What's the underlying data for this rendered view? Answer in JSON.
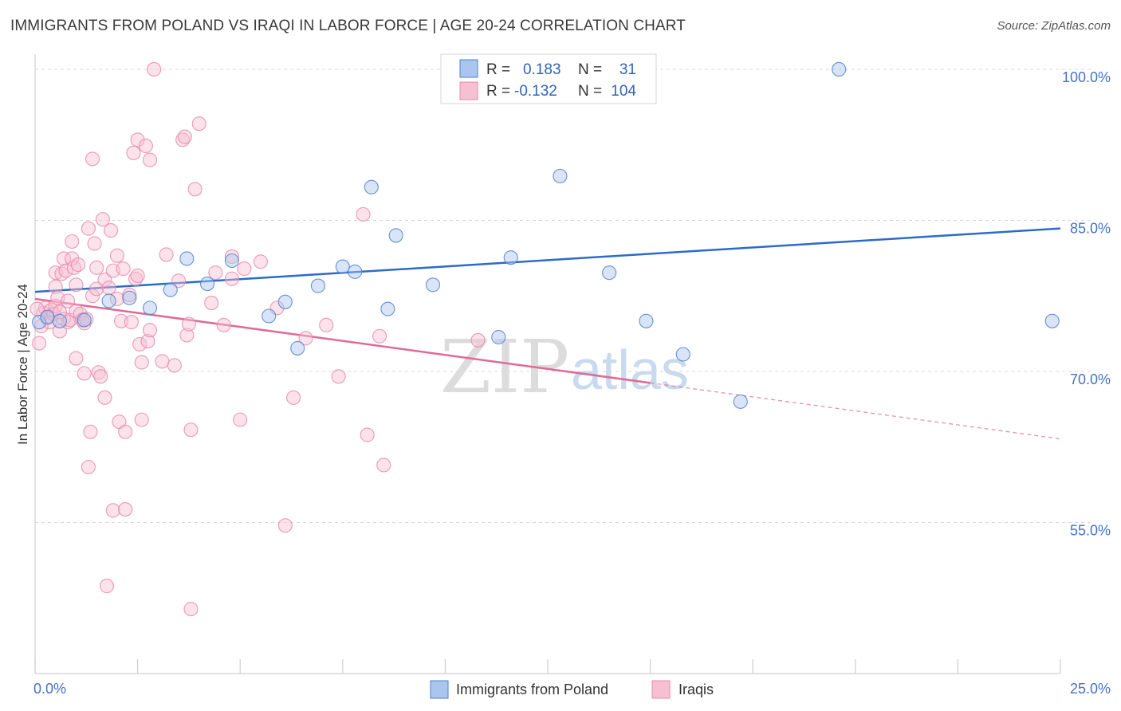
{
  "title": "IMMIGRANTS FROM POLAND VS IRAQI IN LABOR FORCE | AGE 20-24 CORRELATION CHART",
  "source": "Source: ZipAtlas.com",
  "watermark": {
    "zip": "ZIP",
    "atlas": "atlas"
  },
  "colors": {
    "blue": "#4a80d0",
    "blue_fill": "#aac6ee",
    "blue_line": "#2a6cc8",
    "pink": "#e88aaa",
    "pink_fill": "#f6bfd2",
    "pink_line": "#e06a96",
    "tick_text": "#4472c4",
    "grid": "#d8d8d8"
  },
  "stats_legend": {
    "r_label": "R =",
    "n_label": "N =",
    "rows": [
      {
        "series": "Immigrants from Poland",
        "r": "0.183",
        "n": "31"
      },
      {
        "series": "Iraqis",
        "r": "-0.132",
        "n": "104"
      }
    ]
  },
  "chart_data": {
    "type": "scatter",
    "title": "IMMIGRANTS FROM POLAND VS IRAQI IN LABOR FORCE | AGE 20-24 CORRELATION CHART",
    "xlabel": "",
    "ylabel": "In Labor Force | Age 20-24",
    "xlim": [
      0,
      25
    ],
    "ylim": [
      40,
      101.5
    ],
    "x_tick_labels": [
      {
        "value": 0,
        "label": "0.0%"
      },
      {
        "value": 25,
        "label": "25.0%"
      }
    ],
    "y_tick_labels": [
      {
        "value": 55,
        "label": "55.0%"
      },
      {
        "value": 70,
        "label": "70.0%"
      },
      {
        "value": 85,
        "label": "85.0%"
      },
      {
        "value": 100,
        "label": "100.0%"
      }
    ],
    "grid": "horizontal dashed",
    "legend_position": "bottom-center",
    "series": [
      {
        "name": "Immigrants from Poland",
        "color": "#4a80d0",
        "trend": {
          "x": [
            0,
            25
          ],
          "y": [
            77.9,
            84.2
          ],
          "solid_until": 25
        },
        "points": [
          [
            0.1,
            74.9
          ],
          [
            0.3,
            75.4
          ],
          [
            0.6,
            75.0
          ],
          [
            1.2,
            75.1
          ],
          [
            1.8,
            77.0
          ],
          [
            2.3,
            77.3
          ],
          [
            2.8,
            76.3
          ],
          [
            3.3,
            78.1
          ],
          [
            3.7,
            81.2
          ],
          [
            4.2,
            78.7
          ],
          [
            4.8,
            81.0
          ],
          [
            5.7,
            75.5
          ],
          [
            6.1,
            76.9
          ],
          [
            6.4,
            72.3
          ],
          [
            6.9,
            78.5
          ],
          [
            7.5,
            80.4
          ],
          [
            7.8,
            79.9
          ],
          [
            8.2,
            88.3
          ],
          [
            8.6,
            76.2
          ],
          [
            8.8,
            83.5
          ],
          [
            9.7,
            78.6
          ],
          [
            10.1,
            100.0
          ],
          [
            11.3,
            73.4
          ],
          [
            11.6,
            81.3
          ],
          [
            12.8,
            89.4
          ],
          [
            14.0,
            79.8
          ],
          [
            14.9,
            75.0
          ],
          [
            15.8,
            71.7
          ],
          [
            17.2,
            67.0
          ],
          [
            19.6,
            100.0
          ],
          [
            24.8,
            75.0
          ]
        ]
      },
      {
        "name": "Iraqis",
        "color": "#e88aaa",
        "trend": {
          "x": [
            0,
            25
          ],
          "y": [
            77.2,
            63.3
          ],
          "solid_until": 15
        },
        "points": [
          [
            0.1,
            72.8
          ],
          [
            0.2,
            75.8
          ],
          [
            0.25,
            76.3
          ],
          [
            0.3,
            75.3
          ],
          [
            0.35,
            74.9
          ],
          [
            0.4,
            76.1
          ],
          [
            0.45,
            75.7
          ],
          [
            0.5,
            78.4
          ],
          [
            0.5,
            79.8
          ],
          [
            0.5,
            76.5
          ],
          [
            0.55,
            77.3
          ],
          [
            0.6,
            74.0
          ],
          [
            0.6,
            75.9
          ],
          [
            0.65,
            79.7
          ],
          [
            0.7,
            81.2
          ],
          [
            0.7,
            75.2
          ],
          [
            0.75,
            80.0
          ],
          [
            0.8,
            74.9
          ],
          [
            0.8,
            77.0
          ],
          [
            0.85,
            75.1
          ],
          [
            0.9,
            82.9
          ],
          [
            0.9,
            81.2
          ],
          [
            0.95,
            80.3
          ],
          [
            1.0,
            71.3
          ],
          [
            1.0,
            78.6
          ],
          [
            1.0,
            76.0
          ],
          [
            1.05,
            80.6
          ],
          [
            1.1,
            75.7
          ],
          [
            1.15,
            75.1
          ],
          [
            1.2,
            69.8
          ],
          [
            1.2,
            74.8
          ],
          [
            1.25,
            75.2
          ],
          [
            1.3,
            60.5
          ],
          [
            1.3,
            84.2
          ],
          [
            1.35,
            64.0
          ],
          [
            1.4,
            91.1
          ],
          [
            1.4,
            77.5
          ],
          [
            1.45,
            82.7
          ],
          [
            1.5,
            78.2
          ],
          [
            1.5,
            80.3
          ],
          [
            1.55,
            69.9
          ],
          [
            1.6,
            69.5
          ],
          [
            1.65,
            85.1
          ],
          [
            1.7,
            67.4
          ],
          [
            1.7,
            79.1
          ],
          [
            1.75,
            48.7
          ],
          [
            1.8,
            78.3
          ],
          [
            1.85,
            84.0
          ],
          [
            1.9,
            80.0
          ],
          [
            1.9,
            56.2
          ],
          [
            2.0,
            81.5
          ],
          [
            2.0,
            77.2
          ],
          [
            2.05,
            65.0
          ],
          [
            2.1,
            75.0
          ],
          [
            2.15,
            80.2
          ],
          [
            2.2,
            64.0
          ],
          [
            2.2,
            56.3
          ],
          [
            2.3,
            77.6
          ],
          [
            2.35,
            74.9
          ],
          [
            2.4,
            91.7
          ],
          [
            2.45,
            79.2
          ],
          [
            2.5,
            79.5
          ],
          [
            2.5,
            93.0
          ],
          [
            2.55,
            72.7
          ],
          [
            2.6,
            70.9
          ],
          [
            2.6,
            65.2
          ],
          [
            2.7,
            92.4
          ],
          [
            2.75,
            73.0
          ],
          [
            2.8,
            74.1
          ],
          [
            2.8,
            91.0
          ],
          [
            2.9,
            100.0
          ],
          [
            3.1,
            71.0
          ],
          [
            3.2,
            81.6
          ],
          [
            3.4,
            70.6
          ],
          [
            3.5,
            79.0
          ],
          [
            3.6,
            93.0
          ],
          [
            3.65,
            93.3
          ],
          [
            3.7,
            73.6
          ],
          [
            3.75,
            74.7
          ],
          [
            3.8,
            64.2
          ],
          [
            3.8,
            46.4
          ],
          [
            3.9,
            88.1
          ],
          [
            4.0,
            94.6
          ],
          [
            4.3,
            76.8
          ],
          [
            4.4,
            79.8
          ],
          [
            4.6,
            74.6
          ],
          [
            4.8,
            79.2
          ],
          [
            4.8,
            81.4
          ],
          [
            5.0,
            65.2
          ],
          [
            5.1,
            80.2
          ],
          [
            5.5,
            80.9
          ],
          [
            5.9,
            76.3
          ],
          [
            6.1,
            54.7
          ],
          [
            6.3,
            67.4
          ],
          [
            6.6,
            73.3
          ],
          [
            7.1,
            74.6
          ],
          [
            7.4,
            69.5
          ],
          [
            8.0,
            85.6
          ],
          [
            8.1,
            63.7
          ],
          [
            8.4,
            73.5
          ],
          [
            8.5,
            60.7
          ],
          [
            10.8,
            73.1
          ],
          [
            0.05,
            76.2
          ],
          [
            0.15,
            74.5
          ]
        ]
      }
    ]
  },
  "bottom_legend": [
    {
      "label": "Immigrants from Poland"
    },
    {
      "label": "Iraqis"
    }
  ]
}
